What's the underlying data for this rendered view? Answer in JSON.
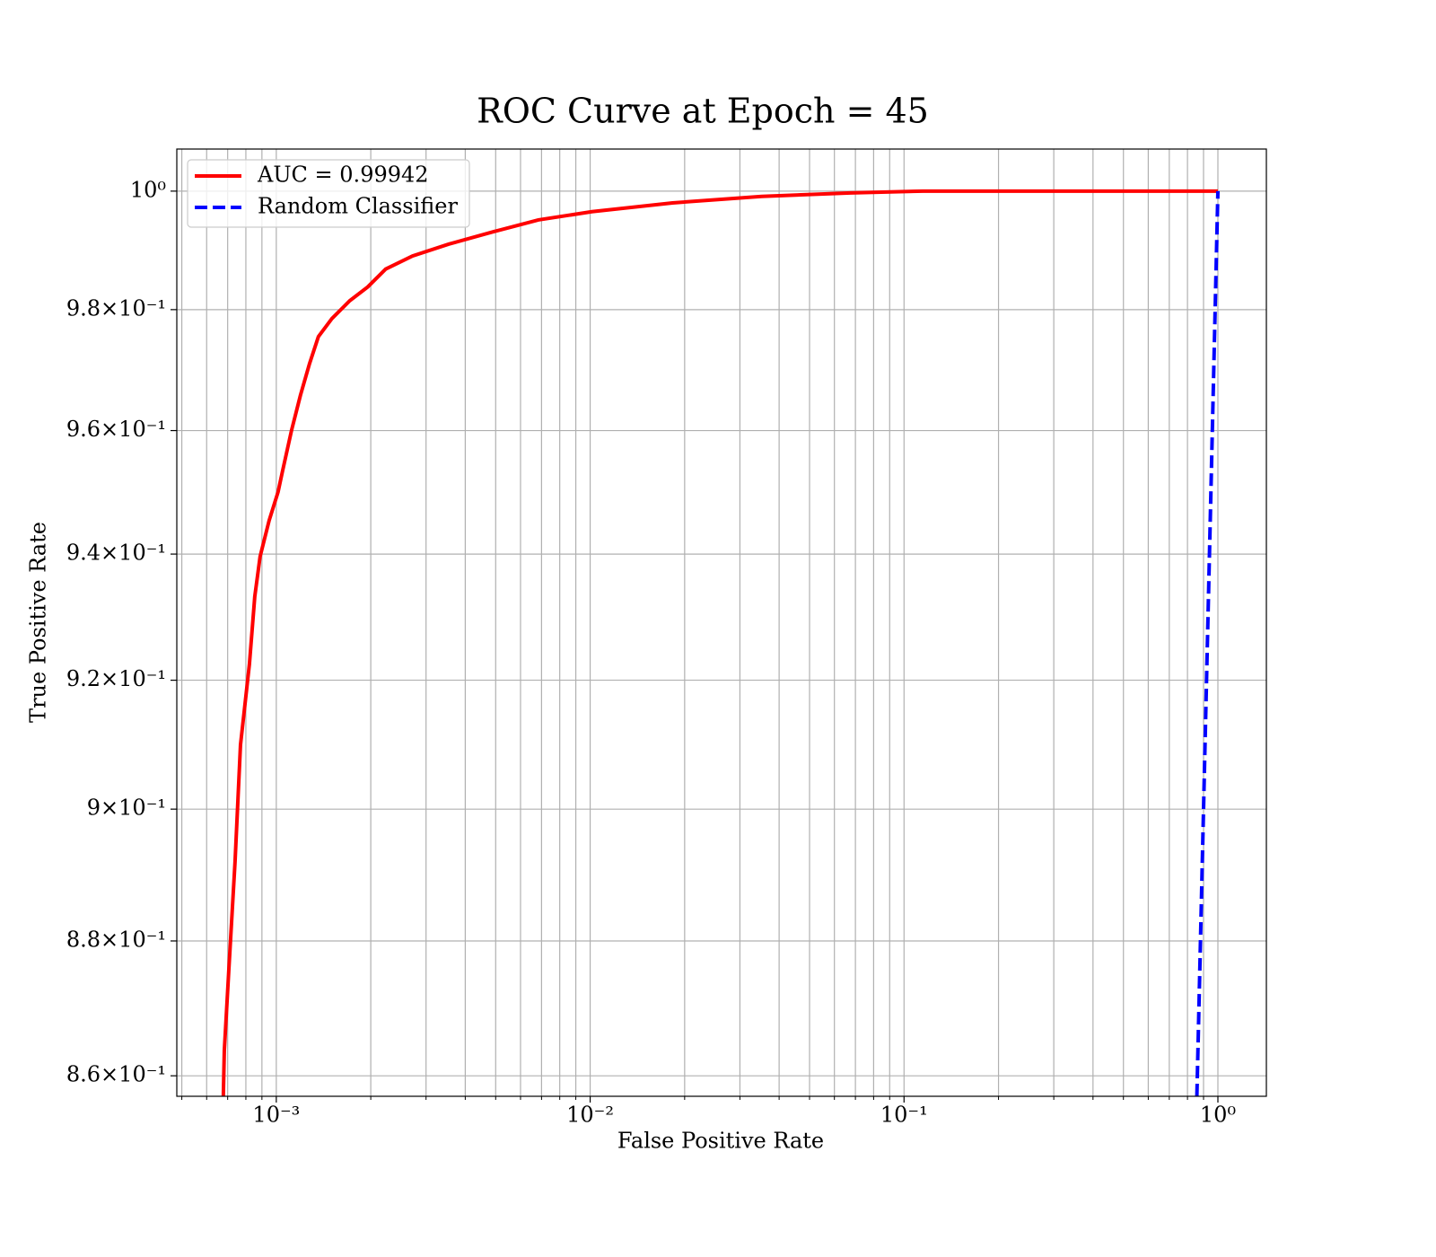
{
  "chart_data": {
    "type": "line",
    "title": "ROC Curve at Epoch = 45",
    "xlabel": "False Positive Rate",
    "ylabel": "True Positive Rate",
    "xscale": "log",
    "yscale": "log",
    "grid": true,
    "legend": "upper left",
    "xlim": [
      0.000482,
      1.427
    ],
    "ylim": [
      0.857,
      1.0072
    ],
    "xticks": [
      {
        "value": 0.001,
        "label": "10⁻³"
      },
      {
        "value": 0.01,
        "label": "10⁻²"
      },
      {
        "value": 0.1,
        "label": "10⁻¹"
      },
      {
        "value": 1,
        "label": "10⁰"
      }
    ],
    "xminorticks": [
      0.0005,
      0.0006,
      0.0007,
      0.0008,
      0.0009,
      0.002,
      0.003,
      0.004,
      0.005,
      0.006,
      0.007,
      0.008,
      0.009,
      0.02,
      0.03,
      0.04,
      0.05,
      0.06,
      0.07,
      0.08,
      0.09,
      0.2,
      0.3,
      0.4,
      0.5,
      0.6,
      0.7,
      0.8,
      0.9
    ],
    "yticks": [
      {
        "value": 0.86,
        "label": "8.6×10⁻¹"
      },
      {
        "value": 0.88,
        "label": "8.8×10⁻¹"
      },
      {
        "value": 0.9,
        "label": "9×10⁻¹"
      },
      {
        "value": 0.92,
        "label": "9.2×10⁻¹"
      },
      {
        "value": 0.94,
        "label": "9.4×10⁻¹"
      },
      {
        "value": 0.96,
        "label": "9.6×10⁻¹"
      },
      {
        "value": 0.98,
        "label": "9.8×10⁻¹"
      },
      {
        "value": 1,
        "label": "10⁰"
      }
    ],
    "series": [
      {
        "name": "AUC = 0.99942",
        "color": "#ff0000",
        "style": "solid",
        "x": [
          0.000678,
          0.000683,
          0.000706,
          0.000739,
          0.000769,
          0.000821,
          0.000854,
          0.000888,
          0.000949,
          0.001013,
          0.001047,
          0.001118,
          0.001194,
          0.001276,
          0.001362,
          0.001504,
          0.001715,
          0.001956,
          0.002231,
          0.002717,
          0.00354,
          0.00492,
          0.00684,
          0.01013,
          0.0183,
          0.0352,
          0.0675,
          0.115,
          1
        ],
        "values": [
          0.857,
          0.8637,
          0.8757,
          0.892,
          0.9099,
          0.9225,
          0.9332,
          0.9396,
          0.9454,
          0.95,
          0.9534,
          0.96,
          0.9658,
          0.971,
          0.9755,
          0.9785,
          0.9815,
          0.9838,
          0.9868,
          0.989,
          0.991,
          0.9931,
          0.9951,
          0.9965,
          0.998,
          0.9991,
          0.9997,
          1,
          1
        ]
      },
      {
        "name": "Random Classifier",
        "color": "#0000ff",
        "style": "dashed",
        "x": [
          0.857,
          0.9,
          0.95,
          1
        ],
        "values": [
          0.857,
          0.9,
          0.95,
          1
        ]
      }
    ]
  }
}
